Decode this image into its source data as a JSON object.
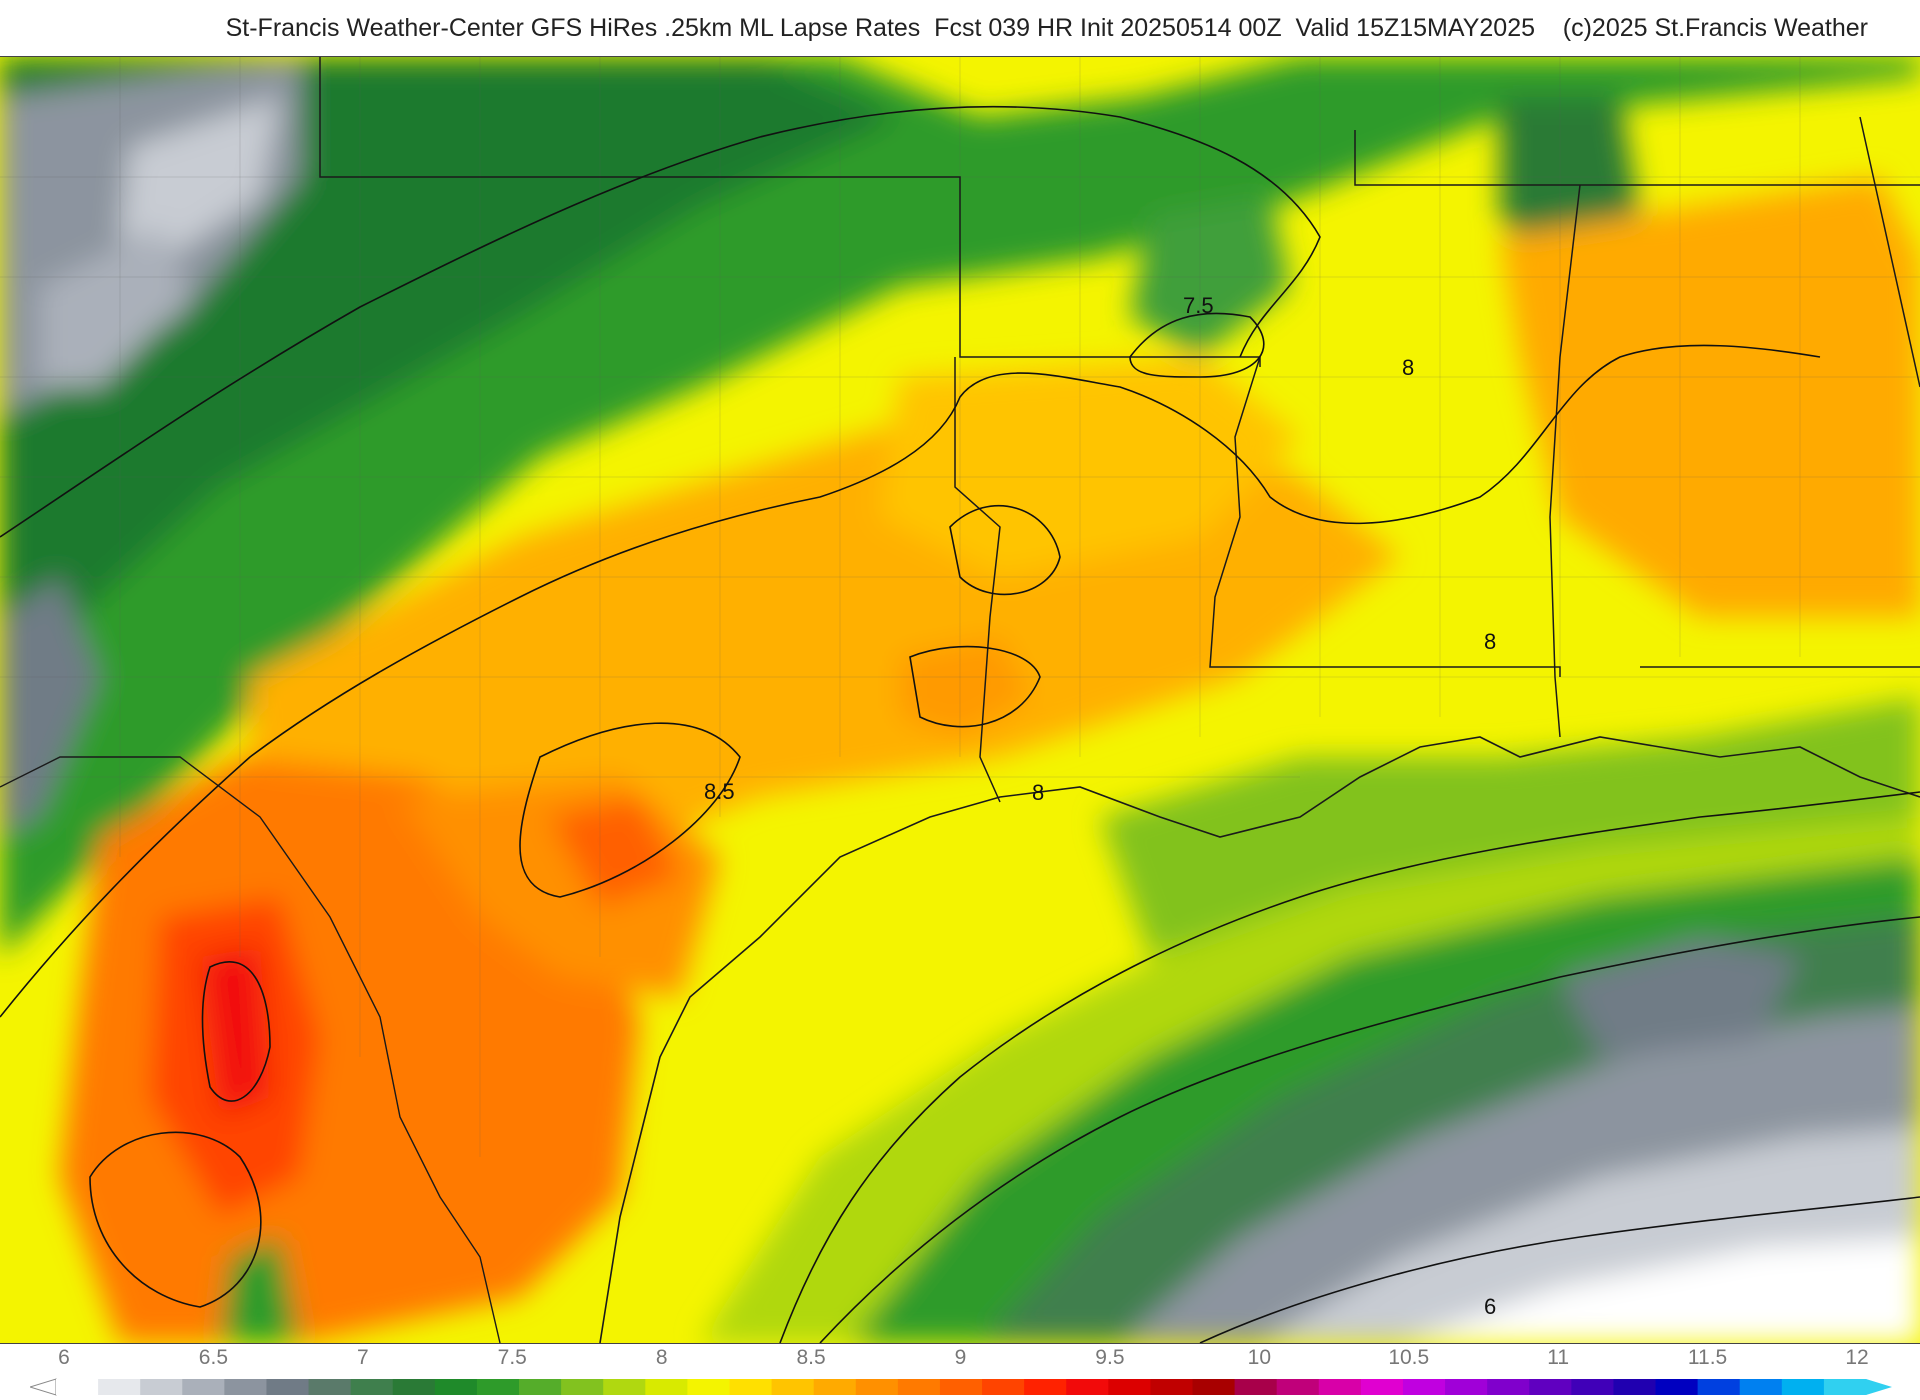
{
  "title": "St-Francis Weather-Center GFS HiRes .25km ML Lapse Rates  Fcst 039 HR Init 20250514 00Z  Valid 15Z15MAY2025    (c)2025 St.Francis Weather",
  "map": {
    "product": "ML Lapse Rates",
    "contour_labels": [
      "7.5",
      "8",
      "8",
      "8",
      "8.5",
      "8",
      "6"
    ]
  },
  "legend": {
    "ticks": [
      "6",
      "6.5",
      "7",
      "7.5",
      "8",
      "8.5",
      "9",
      "9.5",
      "10",
      "10.5",
      "11",
      "11.5",
      "12"
    ],
    "colors": [
      "#ffffff",
      "#e6e8ec",
      "#c8ccd3",
      "#aab0ba",
      "#8c949f",
      "#707b86",
      "#5a7a6a",
      "#3f7f4d",
      "#2a7a36",
      "#1f8a2a",
      "#2e9b2a",
      "#55ad2a",
      "#82c21f",
      "#b0d810",
      "#d8ea00",
      "#f4f400",
      "#ffe000",
      "#ffc400",
      "#ffaa00",
      "#ff9000",
      "#ff7a00",
      "#ff6000",
      "#ff4400",
      "#ff2200",
      "#f20a0a",
      "#dc0000",
      "#c00000",
      "#a80000",
      "#a8004a",
      "#c0007a",
      "#d800a8",
      "#e000d0",
      "#c000e0",
      "#a000d8",
      "#8000cc",
      "#6000c0",
      "#4000b8",
      "#2000b0",
      "#0000c0",
      "#0040e0",
      "#0080f0",
      "#00b0f0",
      "#30d0f0"
    ]
  }
}
